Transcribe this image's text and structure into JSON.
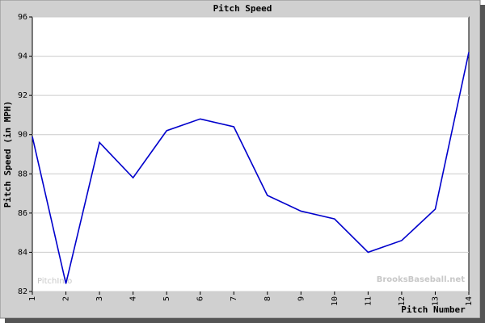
{
  "chart_data": {
    "type": "line",
    "title": "Pitch Speed",
    "x_label": "Pitch Number",
    "y_label": "Pitch Speed (in MPH)",
    "x": [
      1,
      2,
      3,
      4,
      5,
      6,
      7,
      8,
      9,
      10,
      11,
      12,
      13,
      14
    ],
    "values": [
      89.9,
      82.4,
      89.6,
      87.8,
      90.2,
      90.8,
      90.4,
      86.9,
      86.1,
      85.7,
      84.0,
      84.6,
      86.2,
      94.2
    ],
    "color": "#0000cc",
    "xlim": [
      1,
      14
    ],
    "xticks": [
      1,
      2,
      3,
      4,
      5,
      6,
      7,
      8,
      9,
      10,
      11,
      12,
      13,
      14
    ],
    "ylim": [
      82,
      96
    ],
    "yticks": [
      82,
      84,
      86,
      88,
      90,
      92,
      94,
      96
    ],
    "grid": true,
    "annotations": [
      "PitchInfo",
      "BrooksBaseball.net"
    ]
  }
}
